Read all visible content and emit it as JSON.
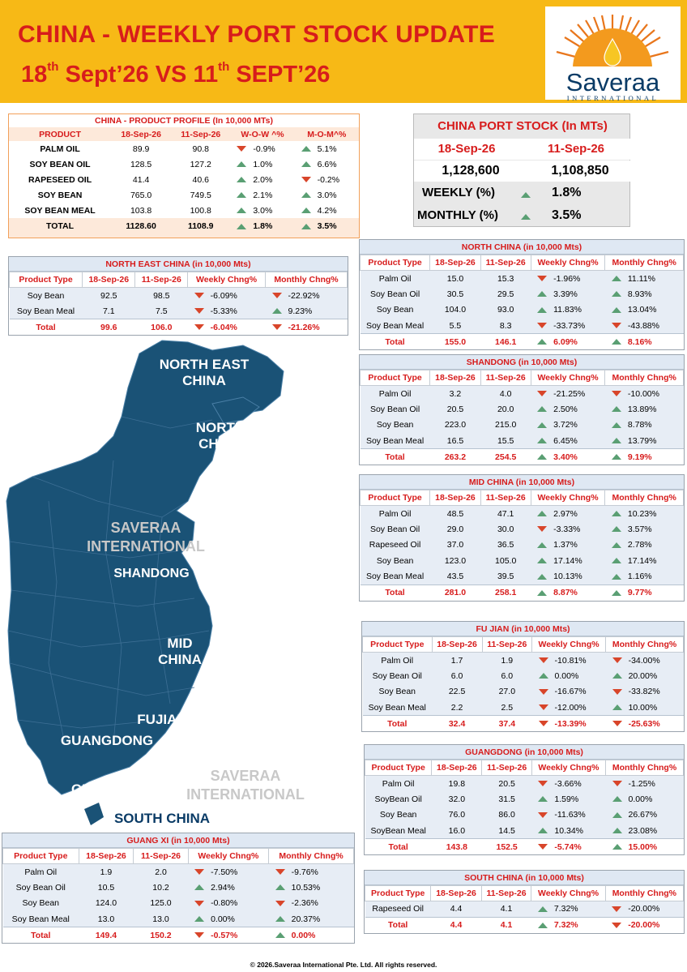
{
  "header": {
    "title": "CHINA - WEEKLY PORT STOCK UPDATE",
    "sub_a": "18",
    "sub_a_sup": "th",
    "sub_b": " Sept’26 VS 11",
    "sub_b_sup": "th",
    "sub_c": " SEPT’26",
    "logo_name": "Saveraa",
    "logo_sub": "INTERNATIONAL"
  },
  "colors": {
    "accent_red": "#d71c1c",
    "header_yellow": "#f7b916",
    "map_blue": "#1a5276",
    "up": "#5a9f73",
    "down": "#d8452a"
  },
  "profile": {
    "title": "CHINA - PRODUCT PROFILE (In 10,000 MTs)",
    "headers": [
      "PRODUCT",
      "18-Sep-26",
      "11-Sep-26",
      "W-O-W ^%",
      "M-O-M^%"
    ],
    "rows": [
      {
        "p": "PALM OIL",
        "a": "89.9",
        "b": "90.8",
        "w_dir": "down",
        "w": "-0.9%",
        "m_dir": "up",
        "m": "5.1%"
      },
      {
        "p": "SOY BEAN OIL",
        "a": "128.5",
        "b": "127.2",
        "w_dir": "up",
        "w": "1.0%",
        "m_dir": "up",
        "m": "6.6%"
      },
      {
        "p": "RAPESEED OIL",
        "a": "41.4",
        "b": "40.6",
        "w_dir": "up",
        "w": "2.0%",
        "m_dir": "down",
        "m": "-0.2%"
      },
      {
        "p": "SOY BEAN",
        "a": "765.0",
        "b": "749.5",
        "w_dir": "up",
        "w": "2.1%",
        "m_dir": "up",
        "m": "3.0%"
      },
      {
        "p": "SOY BEAN MEAL",
        "a": "103.8",
        "b": "100.8",
        "w_dir": "up",
        "w": "3.0%",
        "m_dir": "up",
        "m": "4.2%"
      }
    ],
    "total": {
      "p": "TOTAL",
      "a": "1128.60",
      "b": "1108.9",
      "w_dir": "up",
      "w": "1.8%",
      "m_dir": "up",
      "m": "3.5%"
    }
  },
  "port": {
    "title": "CHINA PORT STOCK  (In MTs)",
    "d1": "18-Sep-26",
    "d2": "11-Sep-26",
    "v1": "1,128,600",
    "v2": "1,108,850",
    "weekly_label": "WEEKLY (%)",
    "weekly": "1.8%",
    "monthly_label": "MONTHLY (%)",
    "monthly": "3.5%"
  },
  "region_headers": [
    "Product Type",
    "18-Sep-26",
    "11-Sep-26",
    "Weekly Chng%",
    "Monthly Chng%"
  ],
  "regions": {
    "northeast": {
      "title": "NORTH EAST CHINA (in 10,000 Mts)",
      "rows": [
        {
          "p": "Soy Bean",
          "a": "92.5",
          "b": "98.5",
          "w_dir": "down",
          "w": "-6.09%",
          "m_dir": "down",
          "m": "-22.92%"
        },
        {
          "p": "Soy Bean Meal",
          "a": "7.1",
          "b": "7.5",
          "w_dir": "down",
          "w": "-5.33%",
          "m_dir": "up",
          "m": "9.23%"
        }
      ],
      "total": {
        "p": "Total",
        "a": "99.6",
        "b": "106.0",
        "w_dir": "down",
        "w": "-6.04%",
        "m_dir": "down",
        "m": "-21.26%"
      }
    },
    "north": {
      "title": "NORTH CHINA (in 10,000 Mts)",
      "rows": [
        {
          "p": "Palm Oil",
          "a": "15.0",
          "b": "15.3",
          "w_dir": "down",
          "w": "-1.96%",
          "m_dir": "up",
          "m": "11.11%"
        },
        {
          "p": "Soy Bean Oil",
          "a": "30.5",
          "b": "29.5",
          "w_dir": "up",
          "w": "3.39%",
          "m_dir": "up",
          "m": "8.93%"
        },
        {
          "p": "Soy Bean",
          "a": "104.0",
          "b": "93.0",
          "w_dir": "up",
          "w": "11.83%",
          "m_dir": "up",
          "m": "13.04%"
        },
        {
          "p": "Soy Bean Meal",
          "a": "5.5",
          "b": "8.3",
          "w_dir": "down",
          "w": "-33.73%",
          "m_dir": "down",
          "m": "-43.88%"
        }
      ],
      "total": {
        "p": "Total",
        "a": "155.0",
        "b": "146.1",
        "w_dir": "up",
        "w": "6.09%",
        "m_dir": "up",
        "m": "8.16%"
      }
    },
    "shandong": {
      "title": "SHANDONG (in 10,000 Mts)",
      "rows": [
        {
          "p": "Palm Oil",
          "a": "3.2",
          "b": "4.0",
          "w_dir": "down",
          "w": "-21.25%",
          "m_dir": "down",
          "m": "-10.00%"
        },
        {
          "p": "Soy Bean Oil",
          "a": "20.5",
          "b": "20.0",
          "w_dir": "up",
          "w": "2.50%",
          "m_dir": "up",
          "m": "13.89%"
        },
        {
          "p": "Soy Bean",
          "a": "223.0",
          "b": "215.0",
          "w_dir": "up",
          "w": "3.72%",
          "m_dir": "up",
          "m": "8.78%"
        },
        {
          "p": "Soy Bean Meal",
          "a": "16.5",
          "b": "15.5",
          "w_dir": "up",
          "w": "6.45%",
          "m_dir": "up",
          "m": "13.79%"
        }
      ],
      "total": {
        "p": "Total",
        "a": "263.2",
        "b": "254.5",
        "w_dir": "up",
        "w": "3.40%",
        "m_dir": "up",
        "m": "9.19%"
      }
    },
    "mid": {
      "title": "MID CHINA (in 10,000 Mts)",
      "rows": [
        {
          "p": "Palm Oil",
          "a": "48.5",
          "b": "47.1",
          "w_dir": "up",
          "w": "2.97%",
          "m_dir": "up",
          "m": "10.23%"
        },
        {
          "p": "Soy Bean Oil",
          "a": "29.0",
          "b": "30.0",
          "w_dir": "down",
          "w": "-3.33%",
          "m_dir": "up",
          "m": "3.57%"
        },
        {
          "p": "Rapeseed Oil",
          "a": "37.0",
          "b": "36.5",
          "w_dir": "up",
          "w": "1.37%",
          "m_dir": "up",
          "m": "2.78%"
        },
        {
          "p": "Soy Bean",
          "a": "123.0",
          "b": "105.0",
          "w_dir": "up",
          "w": "17.14%",
          "m_dir": "up",
          "m": "17.14%"
        },
        {
          "p": "Soy Bean Meal",
          "a": "43.5",
          "b": "39.5",
          "w_dir": "up",
          "w": "10.13%",
          "m_dir": "up",
          "m": "1.16%"
        }
      ],
      "total": {
        "p": "Total",
        "a": "281.0",
        "b": "258.1",
        "w_dir": "up",
        "w": "8.87%",
        "m_dir": "up",
        "m": "9.77%"
      }
    },
    "fujian": {
      "title": "FU JIAN (in 10,000 Mts)",
      "rows": [
        {
          "p": "Palm Oil",
          "a": "1.7",
          "b": "1.9",
          "w_dir": "down",
          "w": "-10.81%",
          "m_dir": "down",
          "m": "-34.00%"
        },
        {
          "p": "Soy Bean Oil",
          "a": "6.0",
          "b": "6.0",
          "w_dir": "up",
          "w": "0.00%",
          "m_dir": "up",
          "m": "20.00%"
        },
        {
          "p": "Soy Bean",
          "a": "22.5",
          "b": "27.0",
          "w_dir": "down",
          "w": "-16.67%",
          "m_dir": "down",
          "m": "-33.82%"
        },
        {
          "p": "Soy Bean Meal",
          "a": "2.2",
          "b": "2.5",
          "w_dir": "down",
          "w": "-12.00%",
          "m_dir": "up",
          "m": "10.00%"
        }
      ],
      "total": {
        "p": "Total",
        "a": "32.4",
        "b": "37.4",
        "w_dir": "down",
        "w": "-13.39%",
        "m_dir": "down",
        "m": "-25.63%"
      }
    },
    "guangdong": {
      "title": "GUANGDONG (in 10,000 Mts)",
      "rows": [
        {
          "p": "Palm Oil",
          "a": "19.8",
          "b": "20.5",
          "w_dir": "down",
          "w": "-3.66%",
          "m_dir": "down",
          "m": "-1.25%"
        },
        {
          "p": "SoyBean Oil",
          "a": "32.0",
          "b": "31.5",
          "w_dir": "up",
          "w": "1.59%",
          "m_dir": "up",
          "m": "0.00%"
        },
        {
          "p": "Soy Bean",
          "a": "76.0",
          "b": "86.0",
          "w_dir": "down",
          "w": "-11.63%",
          "m_dir": "up",
          "m": "26.67%"
        },
        {
          "p": "SoyBean Meal",
          "a": "16.0",
          "b": "14.5",
          "w_dir": "up",
          "w": "10.34%",
          "m_dir": "up",
          "m": "23.08%"
        }
      ],
      "total": {
        "p": "Total",
        "a": "143.8",
        "b": "152.5",
        "w_dir": "down",
        "w": "-5.74%",
        "m_dir": "up",
        "m": "15.00%"
      }
    },
    "guangxi": {
      "title": "GUANG XI (in 10,000 Mts)",
      "rows": [
        {
          "p": "Palm Oil",
          "a": "1.9",
          "b": "2.0",
          "w_dir": "down",
          "w": "-7.50%",
          "m_dir": "down",
          "m": "-9.76%"
        },
        {
          "p": "Soy Bean Oil",
          "a": "10.5",
          "b": "10.2",
          "w_dir": "up",
          "w": "2.94%",
          "m_dir": "up",
          "m": "10.53%"
        },
        {
          "p": "Soy Bean",
          "a": "124.0",
          "b": "125.0",
          "w_dir": "down",
          "w": "-0.80%",
          "m_dir": "down",
          "m": "-2.36%"
        },
        {
          "p": "Soy Bean Meal",
          "a": "13.0",
          "b": "13.0",
          "w_dir": "up",
          "w": "0.00%",
          "m_dir": "up",
          "m": "20.37%"
        }
      ],
      "total": {
        "p": "Total",
        "a": "149.4",
        "b": "150.2",
        "w_dir": "down",
        "w": "-0.57%",
        "m_dir": "up",
        "m": "0.00%"
      }
    },
    "southchina": {
      "title": "SOUTH CHINA (in 10,000 Mts)",
      "rows": [
        {
          "p": "Rapeseed Oil",
          "a": "4.4",
          "b": "4.1",
          "w_dir": "up",
          "w": "7.32%",
          "m_dir": "down",
          "m": "-20.00%"
        }
      ],
      "total": {
        "p": "Total",
        "a": "4.4",
        "b": "4.1",
        "w_dir": "up",
        "w": "7.32%",
        "m_dir": "down",
        "m": "-20.00%"
      }
    }
  },
  "map": {
    "labels": {
      "northeast": "NORTH EAST\nCHINA",
      "north": "NORTH\nCHINA",
      "shandong": "SHANDONG",
      "mid": "MID\nCHINA",
      "fujian": "FUJIAN",
      "guangdong": "GUANGDONG",
      "guangxi": "GUANG XI",
      "southchina": "SOUTH CHINA"
    },
    "watermark_1": "SAVERAA\nINTERNATIONAL",
    "watermark_2": "SAVERAA\nINTERNATIONAL"
  },
  "footer": "© 2026.Saveraa International Pte. Ltd. All rights reserved."
}
